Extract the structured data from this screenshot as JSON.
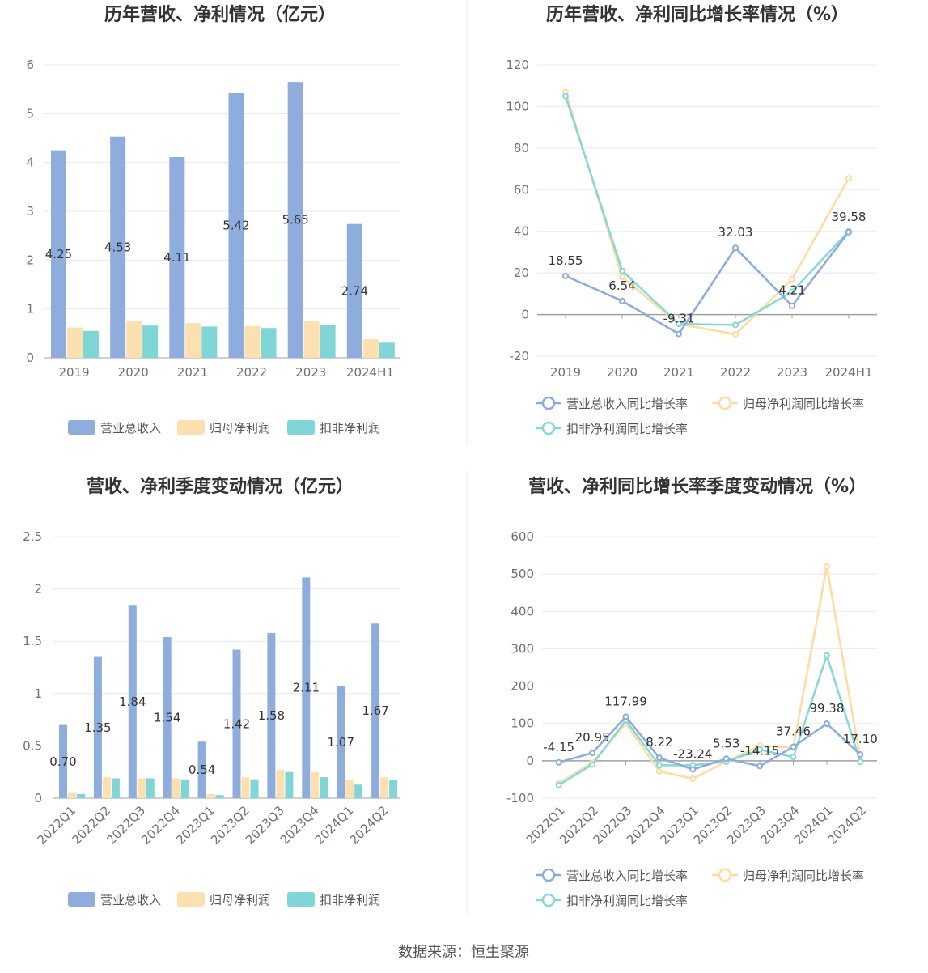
{
  "colors": {
    "revenue": "#8eaddc",
    "net_profit": "#fde0b0",
    "deducted_profit": "#80d6d6",
    "revenue_line": "#8ea9db",
    "net_profit_line": "#fcdca0",
    "deducted_profit_line": "#86d8d6",
    "axis": "#a0a0a0",
    "grid": "#e6e8ee"
  },
  "source": "数据来源：恒生聚源",
  "legend": {
    "bar": [
      "营业总收入",
      "归母净利润",
      "扣非净利润"
    ],
    "line": [
      "营业总收入同比增长率",
      "归母净利润同比增长率",
      "扣非净利润同比增长率"
    ]
  },
  "chart_data": [
    {
      "type": "bar",
      "title": "历年营收、净利情况（亿元）",
      "categories": [
        "2019",
        "2020",
        "2021",
        "2022",
        "2023",
        "2024H1"
      ],
      "ylim": [
        0,
        6
      ],
      "yticks": [
        0,
        1,
        2,
        3,
        4,
        5,
        6
      ],
      "series": [
        {
          "name": "营业总收入",
          "values": [
            4.25,
            4.53,
            4.11,
            5.42,
            5.65,
            2.74
          ]
        },
        {
          "name": "归母净利润",
          "values": [
            0.62,
            0.75,
            0.71,
            0.65,
            0.75,
            0.38
          ]
        },
        {
          "name": "扣非净利润",
          "values": [
            0.55,
            0.66,
            0.64,
            0.61,
            0.68,
            0.31
          ]
        }
      ],
      "data_labels": [
        "4.25",
        "4.53",
        "4.11",
        "5.42",
        "5.65",
        "2.74"
      ],
      "grid": true,
      "legend_position": "bottom"
    },
    {
      "type": "line",
      "title": "历年营收、净利同比增长率情况（%）",
      "categories": [
        "2019",
        "2020",
        "2021",
        "2022",
        "2023",
        "2024H1"
      ],
      "ylim": [
        -20,
        120
      ],
      "yticks": [
        -20,
        0,
        20,
        40,
        60,
        80,
        100,
        120
      ],
      "series": [
        {
          "name": "营业总收入同比增长率",
          "values": [
            18.55,
            6.54,
            -9.31,
            32.03,
            4.21,
            39.58
          ]
        },
        {
          "name": "归母净利润同比增长率",
          "values": [
            107.0,
            18.0,
            -4.5,
            -9.5,
            17.0,
            65.5
          ]
        },
        {
          "name": "扣非净利润同比增长率",
          "values": [
            105.0,
            21.0,
            -4.5,
            -5.0,
            11.0,
            40.0
          ]
        }
      ],
      "data_labels": [
        "18.55",
        "6.54",
        "-9.31",
        "32.03",
        "4.21",
        "39.58"
      ],
      "grid": true,
      "legend_position": "bottom"
    },
    {
      "type": "bar",
      "title": "营收、净利季度变动情况（亿元）",
      "categories": [
        "2022Q1",
        "2022Q2",
        "2022Q3",
        "2022Q4",
        "2023Q1",
        "2023Q2",
        "2023Q3",
        "2023Q4",
        "2024Q1",
        "2024Q2"
      ],
      "ylim": [
        0,
        2.5
      ],
      "yticks": [
        "0",
        "0.5",
        "1",
        "1.5",
        "2",
        "2.5"
      ],
      "series": [
        {
          "name": "营业总收入",
          "values": [
            0.7,
            1.35,
            1.84,
            1.54,
            0.54,
            1.42,
            1.58,
            2.11,
            1.07,
            1.67
          ]
        },
        {
          "name": "归母净利润",
          "values": [
            0.05,
            0.2,
            0.19,
            0.19,
            0.04,
            0.2,
            0.27,
            0.25,
            0.17,
            0.2
          ]
        },
        {
          "name": "扣非净利润",
          "values": [
            0.04,
            0.19,
            0.19,
            0.18,
            0.03,
            0.18,
            0.25,
            0.2,
            0.13,
            0.17
          ]
        }
      ],
      "data_labels": [
        "0.70",
        "1.35",
        "1.84",
        "1.54",
        "0.54",
        "1.42",
        "1.58",
        "2.11",
        "1.07",
        "1.67"
      ],
      "grid": true,
      "legend_position": "bottom"
    },
    {
      "type": "line",
      "title": "营收、净利同比增长率季度变动情况（%）",
      "categories": [
        "2022Q1",
        "2022Q2",
        "2022Q3",
        "2022Q4",
        "2023Q1",
        "2023Q2",
        "2023Q3",
        "2023Q4",
        "2024Q1",
        "2024Q2"
      ],
      "ylim": [
        -100,
        600
      ],
      "yticks": [
        -100,
        0,
        100,
        200,
        300,
        400,
        500,
        600
      ],
      "series": [
        {
          "name": "营业总收入同比增长率",
          "values": [
            -4.15,
            20.95,
            117.99,
            8.22,
            -23.24,
            5.53,
            -14.15,
            37.46,
            99.38,
            17.1
          ]
        },
        {
          "name": "归母净利润同比增长率",
          "values": [
            -60,
            -5,
            100,
            -28,
            -48,
            -2,
            40,
            35,
            520,
            5
          ]
        },
        {
          "name": "扣非净利润同比增长率",
          "values": [
            -65,
            -10,
            108,
            -12,
            -12,
            -2,
            30,
            10,
            282,
            -3
          ]
        }
      ],
      "data_labels": [
        "-4.15",
        "20.95",
        "117.99",
        "8.22",
        "-23.24",
        "5.53",
        "-14.15",
        "37.46",
        "99.38",
        "17.10"
      ],
      "grid": true,
      "legend_position": "bottom"
    }
  ]
}
